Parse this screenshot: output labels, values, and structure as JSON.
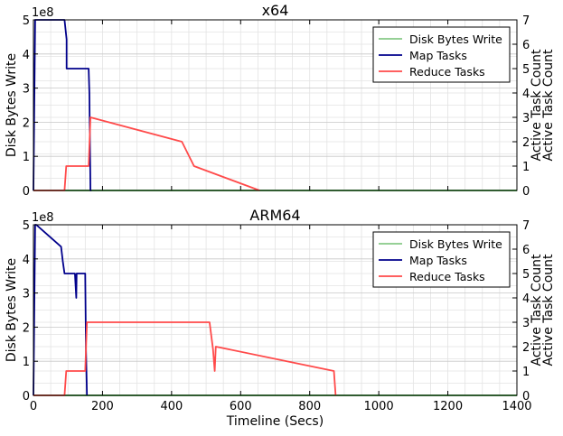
{
  "chart_data": [
    {
      "type": "line",
      "title": "x64",
      "xlabel": "",
      "ylabel": "Disk Bytes Write",
      "ylabel_right": "Active Task Count",
      "y_offset_text": "1e8",
      "xlim": [
        0,
        1400
      ],
      "ylim": [
        0,
        5
      ],
      "ylim_right": [
        0,
        7
      ],
      "x_ticks": [
        0,
        200,
        400,
        600,
        800,
        1000,
        1200,
        1400
      ],
      "x_tick_labels": [
        "",
        "",
        "",
        "",
        "",
        "",
        "",
        ""
      ],
      "y_ticks": [
        0,
        1,
        2,
        3,
        4,
        5
      ],
      "y_tick_labels": [
        "0",
        "1",
        "2",
        "3",
        "4",
        "5"
      ],
      "y_right_ticks": [
        0,
        1,
        2,
        3,
        4,
        5,
        6,
        7
      ],
      "y_right_tick_labels": [
        "0",
        "1",
        "2",
        "3",
        "4",
        "5",
        "6",
        "7"
      ],
      "grid": true,
      "legend_position": "top-right",
      "series": [
        {
          "name": "Disk Bytes Write",
          "axis": "left",
          "color": "#2ca02c",
          "x": [
            0,
            1400
          ],
          "y": [
            0,
            0
          ]
        },
        {
          "name": "Map Tasks",
          "axis": "right",
          "color": "#00008b",
          "x": [
            0,
            5,
            8,
            90,
            96,
            96,
            160,
            162,
            165,
            168
          ],
          "y": [
            0,
            7,
            7,
            7,
            6.2,
            5,
            5,
            4,
            0,
            0
          ]
        },
        {
          "name": "Reduce Tasks",
          "axis": "right",
          "color": "#ff4a4a",
          "x": [
            0,
            90,
            95,
            160,
            165,
            430,
            465,
            655
          ],
          "y": [
            0,
            0,
            1,
            1,
            3,
            2,
            1,
            0
          ]
        }
      ]
    },
    {
      "type": "line",
      "title": "ARM64",
      "xlabel": "Timeline (Secs)",
      "ylabel": "Disk Bytes Write",
      "ylabel_right": "Active Task Count",
      "y_offset_text": "1e8",
      "xlim": [
        0,
        1400
      ],
      "ylim": [
        0,
        5
      ],
      "ylim_right": [
        0,
        7
      ],
      "x_ticks": [
        0,
        200,
        400,
        600,
        800,
        1000,
        1200,
        1400
      ],
      "x_tick_labels": [
        "0",
        "200",
        "400",
        "600",
        "800",
        "1000",
        "1200",
        "1400"
      ],
      "y_ticks": [
        0,
        1,
        2,
        3,
        4,
        5
      ],
      "y_tick_labels": [
        "0",
        "1",
        "2",
        "3",
        "4",
        "5"
      ],
      "y_right_ticks": [
        0,
        1,
        2,
        3,
        4,
        5,
        6,
        7
      ],
      "y_right_tick_labels": [
        "0",
        "1",
        "2",
        "3",
        "4",
        "5",
        "6",
        "7"
      ],
      "grid": true,
      "legend_position": "top-right",
      "series": [
        {
          "name": "Disk Bytes Write",
          "axis": "left",
          "color": "#2ca02c",
          "x": [
            0,
            1400
          ],
          "y": [
            0,
            0
          ]
        },
        {
          "name": "Map Tasks",
          "axis": "right",
          "color": "#00008b",
          "x": [
            0,
            5,
            8,
            80,
            85,
            90,
            95,
            120,
            124,
            125,
            128,
            150,
            152,
            155
          ],
          "y": [
            0,
            7,
            7,
            6.1,
            5.5,
            5,
            5,
            5,
            4,
            5,
            5,
            5,
            2,
            0
          ]
        },
        {
          "name": "Reduce Tasks",
          "axis": "right",
          "color": "#ff4a4a",
          "x": [
            0,
            90,
            95,
            150,
            155,
            510,
            520,
            525,
            528,
            870,
            875
          ],
          "y": [
            0,
            0,
            1,
            1,
            3,
            3,
            1.9,
            1,
            2,
            1,
            0
          ]
        }
      ]
    }
  ]
}
